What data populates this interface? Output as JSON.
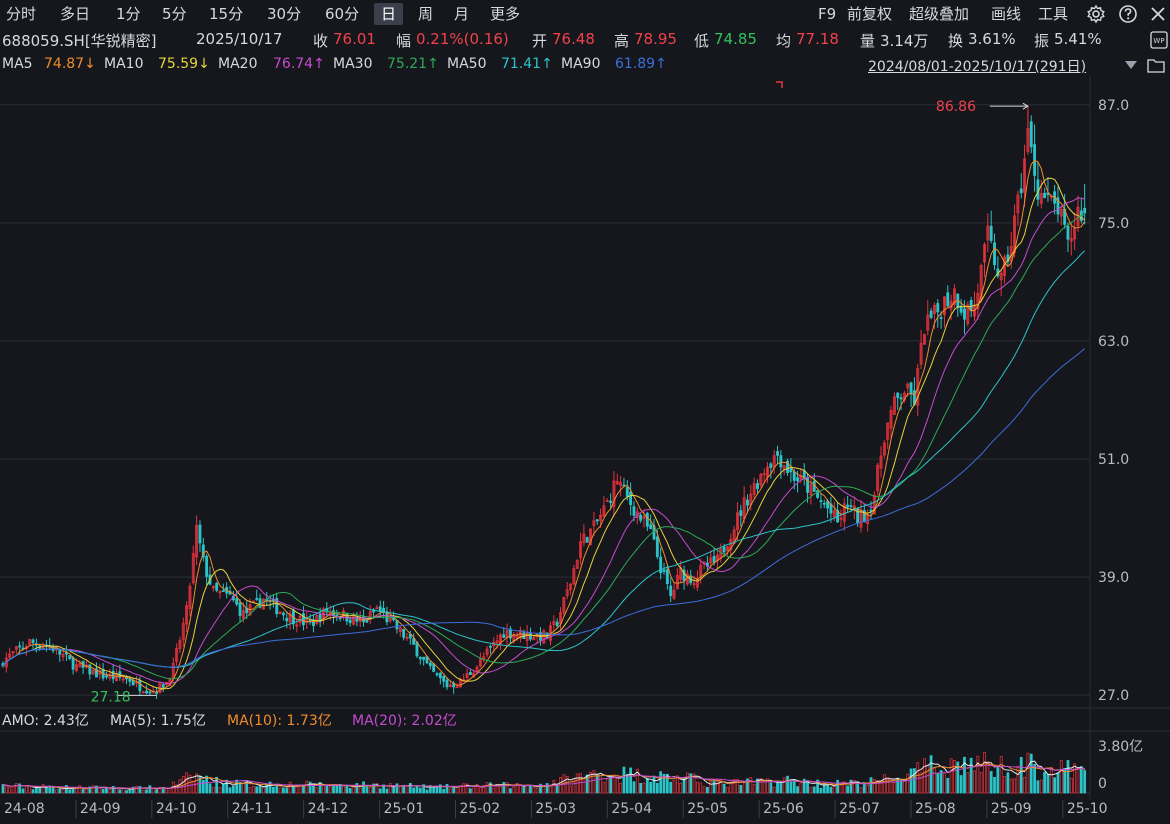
{
  "toolbar": {
    "periods": [
      "分时",
      "多日",
      "1分",
      "5分",
      "15分",
      "30分",
      "60分",
      "日",
      "周",
      "月",
      "更多"
    ],
    "active_period": "日",
    "right_items": [
      "F9",
      "前复权",
      "超级叠加",
      "画线",
      "工具"
    ],
    "icons": [
      "gear-icon",
      "help-icon",
      "close-icon"
    ]
  },
  "info": {
    "code": "688059.SH[华锐精密]",
    "date": "2025/10/17",
    "close_label": "收",
    "close": "76.01",
    "change_label": "幅",
    "change": "0.21%(0.16)",
    "open_label": "开",
    "open": "76.48",
    "high_label": "高",
    "high": "78.95",
    "low_label": "低",
    "low": "74.85",
    "avg_label": "均",
    "avg": "77.18",
    "vol_label": "量",
    "vol": "3.14万",
    "turnover_label": "换",
    "turnover": "3.61%",
    "amplitude_label": "振",
    "amplitude": "5.41%"
  },
  "ma_legend": [
    {
      "label": "MA5",
      "value": "74.87↓",
      "color": "#f08c2c"
    },
    {
      "label": "MA10",
      "value": "75.59↓",
      "color": "#e6d23c"
    },
    {
      "label": "MA20",
      "value": "76.74↑",
      "color": "#c64bd0"
    },
    {
      "label": "MA30",
      "value": "75.21↑",
      "color": "#2eaa57"
    },
    {
      "label": "MA50",
      "value": "71.41↑",
      "color": "#2bc4c8"
    },
    {
      "label": "MA90",
      "value": "61.89↑",
      "color": "#3c6edc"
    }
  ],
  "range_text": "2024/08/01-2025/10/17(291日)",
  "amo": {
    "label": "AMO: 2.43亿",
    "ma5": "MA(5): 1.75亿",
    "ma10": "MA(10): 1.73亿",
    "ma20": "MA(20): 2.02亿",
    "ma10_color": "#f08c2c",
    "ma20_color": "#c64bd0"
  },
  "chart_data": {
    "type": "candlestick",
    "y_ticks": [
      87.0,
      75.0,
      63.0,
      51.0,
      39.0,
      27.0
    ],
    "ylim": [
      26.0,
      88.5
    ],
    "max_label": "86.86",
    "min_label": "27.18",
    "volume_ticks": [
      "3.80亿",
      "0"
    ],
    "x_ticks": [
      "24-08",
      "24-09",
      "24-10",
      "24-11",
      "24-12",
      "25-01",
      "25-02",
      "25-03",
      "25-04",
      "25-05",
      "25-06",
      "25-07",
      "25-08",
      "25-09",
      "25-10"
    ],
    "close_path": [
      [
        0,
        30.5
      ],
      [
        8,
        32.4
      ],
      [
        15,
        31.8
      ],
      [
        22,
        29.9
      ],
      [
        30,
        29.0
      ],
      [
        38,
        28.6
      ],
      [
        40,
        28.0
      ],
      [
        45,
        27.5
      ],
      [
        49,
        28.3
      ],
      [
        51,
        29.8
      ],
      [
        55,
        35.5
      ],
      [
        58,
        43.8
      ],
      [
        60,
        40.5
      ],
      [
        63,
        37.5
      ],
      [
        68,
        37.0
      ],
      [
        72,
        35.2
      ],
      [
        78,
        36.8
      ],
      [
        85,
        35.1
      ],
      [
        92,
        34.2
      ],
      [
        97,
        35.6
      ],
      [
        103,
        35.0
      ],
      [
        108,
        34.3
      ],
      [
        112,
        35.8
      ],
      [
        118,
        33.8
      ],
      [
        123,
        32.0
      ],
      [
        128,
        29.5
      ],
      [
        133,
        28.0
      ],
      [
        137,
        28.3
      ],
      [
        142,
        30.0
      ],
      [
        150,
        33.4
      ],
      [
        158,
        33.1
      ],
      [
        163,
        33.0
      ],
      [
        166,
        34.5
      ],
      [
        170,
        38.5
      ],
      [
        173,
        42.5
      ],
      [
        177,
        44.0
      ],
      [
        181,
        46.5
      ],
      [
        184,
        49.0
      ],
      [
        187,
        47.0
      ],
      [
        190,
        45.5
      ],
      [
        194,
        43.5
      ],
      [
        197,
        40.0
      ],
      [
        200,
        37.0
      ],
      [
        203,
        39.5
      ],
      [
        207,
        38.8
      ],
      [
        210,
        40.0
      ],
      [
        214,
        40.6
      ],
      [
        218,
        43.5
      ],
      [
        222,
        46.5
      ],
      [
        226,
        48.8
      ],
      [
        229,
        50.5
      ],
      [
        232,
        51.5
      ],
      [
        236,
        49.5
      ],
      [
        240,
        48.5
      ],
      [
        244,
        47.0
      ],
      [
        247,
        46.0
      ],
      [
        250,
        44.5
      ],
      [
        253,
        46.5
      ],
      [
        256,
        45.0
      ],
      [
        259,
        45.5
      ],
      [
        261,
        47.5
      ],
      [
        264,
        53.5
      ],
      [
        267,
        56.5
      ],
      [
        270,
        58.0
      ],
      [
        273,
        57.0
      ],
      [
        276,
        64.5
      ],
      [
        279,
        65.5
      ],
      [
        282,
        67.0
      ],
      [
        285,
        68.0
      ],
      [
        288,
        66.0
      ],
      [
        291,
        66.5
      ],
      [
        295,
        73.5
      ],
      [
        299,
        69.0
      ],
      [
        302,
        73.0
      ],
      [
        305,
        79.0
      ],
      [
        307,
        84.0
      ],
      [
        310,
        78.5
      ],
      [
        313,
        77.0
      ],
      [
        316,
        76.5
      ],
      [
        319,
        72.5
      ],
      [
        322,
        76.2
      ],
      [
        324,
        76.0
      ]
    ],
    "volume_path": [
      [
        0,
        0.45
      ],
      [
        20,
        0.35
      ],
      [
        40,
        0.3
      ],
      [
        49,
        0.35
      ],
      [
        55,
        0.9
      ],
      [
        58,
        1.1
      ],
      [
        62,
        0.75
      ],
      [
        70,
        0.6
      ],
      [
        85,
        0.55
      ],
      [
        100,
        0.5
      ],
      [
        115,
        0.5
      ],
      [
        130,
        0.35
      ],
      [
        140,
        0.45
      ],
      [
        160,
        0.5
      ],
      [
        170,
        0.9
      ],
      [
        180,
        1.3
      ],
      [
        195,
        1.1
      ],
      [
        205,
        0.9
      ],
      [
        215,
        0.6
      ],
      [
        225,
        0.7
      ],
      [
        235,
        0.8
      ],
      [
        245,
        0.6
      ],
      [
        255,
        0.6
      ],
      [
        262,
        0.75
      ],
      [
        270,
        1.1
      ],
      [
        280,
        1.8
      ],
      [
        290,
        1.9
      ],
      [
        300,
        1.7
      ],
      [
        305,
        1.9
      ],
      [
        312,
        1.5
      ],
      [
        324,
        1.4
      ]
    ]
  }
}
